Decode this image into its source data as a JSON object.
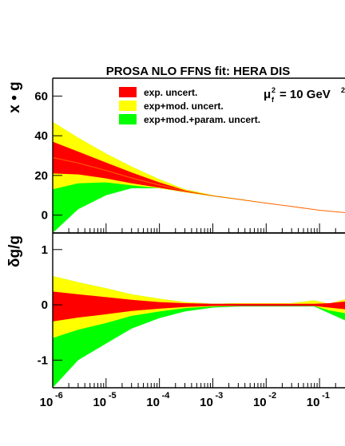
{
  "chart_data": {
    "type": "area",
    "title": "PROSA NLO FFNS fit: HERA DIS",
    "scale_label": {
      "mu": "μ",
      "sup": "2",
      "sub": "f",
      "rest": "= 10 GeV",
      "tail": "2"
    },
    "xlabel": "",
    "x_scale": "log",
    "x_tick_labels": [
      {
        "base": "10",
        "exp": "-6"
      },
      {
        "base": "10",
        "exp": "-5"
      },
      {
        "base": "10",
        "exp": "-4"
      },
      {
        "base": "10",
        "exp": "-3"
      },
      {
        "base": "10",
        "exp": "-2"
      },
      {
        "base": "10",
        "exp": "-1"
      }
    ],
    "legend": [
      {
        "name": "exp. uncert.",
        "color": "#ff0000"
      },
      {
        "name": "exp+mod. uncert.",
        "color": "#ffff00"
      },
      {
        "name": "exp+mod.+param. uncert.",
        "color": "#00ff00"
      }
    ],
    "panels": [
      {
        "ylabel": "x • g",
        "ylim": [
          -9,
          69
        ],
        "yticks": [
          "0",
          "20",
          "40",
          "60"
        ],
        "x": [
          1e-06,
          3e-06,
          1e-05,
          3e-05,
          0.0001,
          0.0003,
          0.001,
          0.003,
          0.01,
          0.03,
          0.1,
          0.3
        ],
        "bands": [
          {
            "name": "exp+mod.+param. uncert.",
            "upper": [
              47,
              39,
              31,
              24.5,
              18,
              13,
              10,
              8.2,
              6.2,
              4.4,
              2.5,
              1.3
            ],
            "lower": [
              -9,
              3,
              10,
              13.5,
              13.5,
              11.5,
              9.5,
              7.8,
              6.0,
              4.3,
              2.4,
              1.2
            ]
          },
          {
            "name": "exp+mod. uncert.",
            "upper": [
              47,
              39,
              31,
              24.5,
              18,
              13,
              10,
              8.2,
              6.2,
              4.4,
              2.5,
              1.3
            ],
            "lower": [
              13,
              16,
              16.5,
              15,
              13.5,
              11.5,
              9.5,
              7.8,
              6.0,
              4.3,
              2.4,
              1.2
            ]
          },
          {
            "name": "exp. uncert.",
            "upper": [
              37,
              32,
              26.5,
              21.5,
              16.5,
              12.5,
              9.8,
              8.1,
              6.1,
              4.4,
              2.5,
              1.3
            ],
            "lower": [
              21,
              20.5,
              18.5,
              16,
              13.8,
              11.7,
              9.6,
              7.9,
              6.0,
              4.3,
              2.4,
              1.2
            ]
          }
        ]
      },
      {
        "ylabel": "δg/g",
        "ylim": [
          -1.5,
          1.3
        ],
        "yticks": [
          "-1",
          "0",
          "1"
        ],
        "x": [
          1e-06,
          3e-06,
          1e-05,
          3e-05,
          0.0001,
          0.0003,
          0.001,
          0.003,
          0.01,
          0.03,
          0.08,
          0.15,
          0.3
        ],
        "bands": [
          {
            "name": "exp+mod.+param. uncert.",
            "upper": [
              0.52,
              0.41,
              0.3,
              0.19,
              0.11,
              0.05,
              0.02,
              0.03,
              0.03,
              0.03,
              0.08,
              0.02,
              0.1
            ],
            "lower": [
              -1.5,
              -1.0,
              -0.7,
              -0.43,
              -0.24,
              -0.12,
              -0.05,
              -0.03,
              -0.03,
              -0.03,
              -0.03,
              -0.15,
              -0.28
            ]
          },
          {
            "name": "exp+mod. uncert.",
            "upper": [
              0.52,
              0.41,
              0.3,
              0.19,
              0.11,
              0.05,
              0.02,
              0.03,
              0.03,
              0.03,
              0.08,
              0.02,
              0.1
            ],
            "lower": [
              -0.6,
              -0.45,
              -0.33,
              -0.2,
              -0.12,
              -0.06,
              -0.03,
              -0.02,
              -0.02,
              -0.02,
              -0.02,
              -0.1,
              -0.15
            ]
          },
          {
            "name": "exp. uncert.",
            "upper": [
              0.24,
              0.19,
              0.14,
              0.09,
              0.05,
              0.03,
              0.02,
              0.02,
              0.02,
              0.02,
              0.02,
              0.03,
              0.06
            ],
            "lower": [
              -0.3,
              -0.23,
              -0.17,
              -0.11,
              -0.07,
              -0.04,
              -0.02,
              -0.02,
              -0.02,
              -0.02,
              -0.02,
              -0.05,
              -0.08
            ]
          }
        ]
      }
    ],
    "x_domain": [
      1e-06,
      0.3
    ]
  }
}
